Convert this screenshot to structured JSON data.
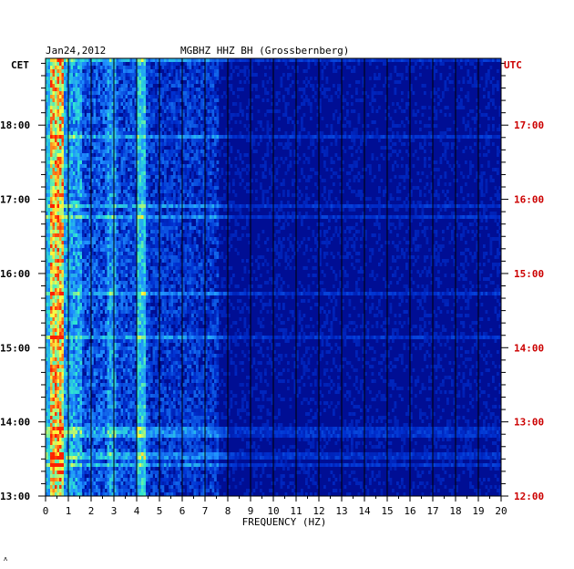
{
  "chart_data": {
    "type": "heatmap",
    "date": "Jan24,2012",
    "station": "MGBHZ HHZ BH (Grossbernberg)",
    "left_axis_label": "CET",
    "right_axis_label": "UTC",
    "xlabel": "FREQUENCY (HZ)",
    "x_ticks": [
      "0",
      "1",
      "2",
      "3",
      "4",
      "5",
      "6",
      "7",
      "8",
      "9",
      "10",
      "11",
      "12",
      "13",
      "14",
      "15",
      "16",
      "17",
      "18",
      "19",
      "20"
    ],
    "xlim": [
      0,
      20
    ],
    "cet_ticks": [
      {
        "label": "13:00",
        "hour": 13
      },
      {
        "label": "14:00",
        "hour": 14
      },
      {
        "label": "15:00",
        "hour": 15
      },
      {
        "label": "16:00",
        "hour": 16
      },
      {
        "label": "17:00",
        "hour": 17
      },
      {
        "label": "18:00",
        "hour": 18
      }
    ],
    "utc_ticks": [
      {
        "label": "12:00",
        "hour": 12
      },
      {
        "label": "13:00",
        "hour": 13
      },
      {
        "label": "14:00",
        "hour": 14
      },
      {
        "label": "15:00",
        "hour": 15
      },
      {
        "label": "16:00",
        "hour": 16
      },
      {
        "label": "17:00",
        "hour": 17
      }
    ],
    "ylim_cet": [
      13.0,
      18.9
    ],
    "colormap": [
      "#00007a",
      "#0030d0",
      "#1f8fff",
      "#30e8d0",
      "#ffff40",
      "#ff2000"
    ],
    "utc_label_color": "#cc0000",
    "footer_mark": "ʌ"
  }
}
